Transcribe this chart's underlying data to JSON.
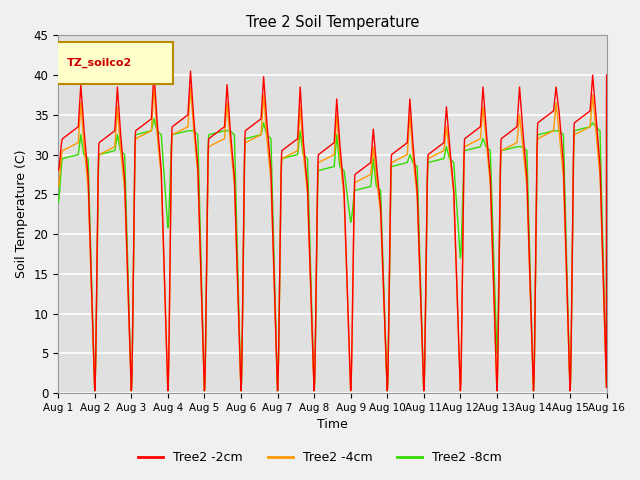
{
  "title": "Tree 2 Soil Temperature",
  "xlabel": "Time",
  "ylabel": "Soil Temperature (C)",
  "ylim": [
    0,
    45
  ],
  "xlim": [
    0,
    15
  ],
  "bg_color": "#e0e0e0",
  "grid_color": "#ffffff",
  "fig_color": "#f0f0f0",
  "legend_label": "TZ_soilco2",
  "series_labels": [
    "Tree2 -2cm",
    "Tree2 -4cm",
    "Tree2 -8cm"
  ],
  "series_colors": [
    "#ff0000",
    "#ff9900",
    "#33dd00"
  ],
  "x_tick_labels": [
    "Aug 1",
    "Aug 2",
    "Aug 3",
    "Aug 4",
    "Aug 5",
    "Aug 6",
    "Aug 7",
    "Aug 8",
    "Aug 9",
    "Aug 10",
    "Aug 11",
    "Aug 12",
    "Aug 13",
    "Aug 14",
    "Aug 15",
    "Aug 16"
  ],
  "day_peaks_2cm": [
    38.8,
    38.5,
    40.5,
    40.5,
    38.8,
    39.8,
    38.5,
    37.0,
    33.2,
    37.0,
    36.0,
    38.5,
    38.5,
    38.5,
    40.0
  ],
  "day_peaks_4cm": [
    36.5,
    36.0,
    38.5,
    38.5,
    36.5,
    37.5,
    36.0,
    35.0,
    31.0,
    35.0,
    33.5,
    36.0,
    35.0,
    36.5,
    37.5
  ],
  "day_peaks_8cm": [
    32.5,
    32.5,
    34.5,
    33.0,
    33.0,
    34.0,
    33.0,
    32.5,
    29.5,
    30.0,
    31.0,
    32.0,
    31.0,
    33.0,
    34.0
  ],
  "plateau_2cm": [
    32.0,
    31.5,
    33.0,
    33.5,
    32.0,
    33.0,
    30.5,
    30.0,
    27.5,
    30.0,
    30.0,
    32.0,
    32.0,
    34.0,
    34.0
  ],
  "plateau_4cm": [
    30.5,
    30.0,
    32.0,
    32.5,
    31.0,
    31.5,
    29.5,
    29.0,
    26.5,
    29.0,
    29.5,
    31.0,
    30.5,
    32.0,
    32.5
  ],
  "plateau_8cm": [
    29.5,
    30.0,
    32.5,
    32.5,
    32.5,
    32.0,
    29.5,
    28.0,
    25.5,
    28.5,
    29.0,
    30.5,
    30.5,
    32.5,
    33.0
  ],
  "night_min_2cm": [
    0.3,
    0.3,
    0.3,
    0.3,
    0.3,
    0.3,
    0.3,
    0.3,
    0.3,
    0.3,
    0.3,
    0.3,
    0.3,
    0.3,
    0.3
  ],
  "night_min_4cm": [
    0.3,
    0.3,
    0.3,
    0.3,
    0.3,
    0.3,
    0.3,
    0.3,
    0.3,
    0.3,
    0.3,
    0.3,
    0.3,
    0.3,
    0.3
  ],
  "night_min_8cm": [
    0.3,
    0.3,
    20.8,
    0.3,
    0.3,
    0.3,
    0.3,
    21.5,
    0.3,
    0.3,
    17.0,
    5.0,
    0.3,
    0.3,
    0.3
  ]
}
